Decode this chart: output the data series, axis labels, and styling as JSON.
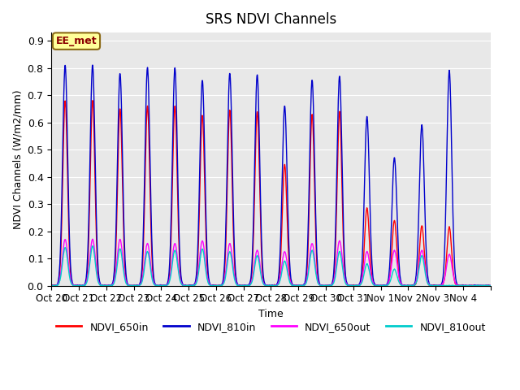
{
  "title": "SRS NDVI Channels",
  "ylabel": "NDVI Channels (W/m2/mm)",
  "xlabel": "Time",
  "ylim": [
    0.0,
    0.93
  ],
  "yticks": [
    0.0,
    0.1,
    0.2,
    0.3,
    0.4,
    0.5,
    0.6,
    0.7,
    0.8,
    0.9
  ],
  "annotation_text": "EE_met",
  "annotation_color": "#8B0000",
  "annotation_bg": "#FFFF99",
  "annotation_border": "#8B6914",
  "background_color": "#E8E8E8",
  "line_colors": {
    "NDVI_650in": "#FF0000",
    "NDVI_810in": "#0000CC",
    "NDVI_650out": "#FF00FF",
    "NDVI_810out": "#00CCCC"
  },
  "day_labels": [
    "Oct 20",
    "Oct 21",
    "Oct 22",
    "Oct 23",
    "Oct 24",
    "Oct 25",
    "Oct 26",
    "Oct 27",
    "Oct 28",
    "Oct 29",
    "Oct 30",
    "Oct 31",
    "Nov 1",
    "Nov 2",
    "Nov 3",
    "Nov 4"
  ],
  "peaks_810in": [
    0.81,
    0.81,
    0.78,
    0.8,
    0.8,
    0.755,
    0.78,
    0.775,
    0.66,
    0.755,
    0.77,
    0.62,
    0.47,
    0.59,
    0.79,
    0.0
  ],
  "peaks_650in": [
    0.68,
    0.68,
    0.65,
    0.66,
    0.66,
    0.625,
    0.645,
    0.64,
    0.445,
    0.63,
    0.64,
    0.285,
    0.24,
    0.22,
    0.215,
    0.0
  ],
  "peaks_650out": [
    0.17,
    0.17,
    0.17,
    0.155,
    0.155,
    0.165,
    0.155,
    0.13,
    0.125,
    0.155,
    0.165,
    0.125,
    0.13,
    0.13,
    0.115,
    0.0
  ],
  "peaks_810out": [
    0.14,
    0.145,
    0.135,
    0.125,
    0.13,
    0.135,
    0.125,
    0.11,
    0.09,
    0.13,
    0.125,
    0.08,
    0.06,
    0.11,
    0.0,
    0.0
  ]
}
